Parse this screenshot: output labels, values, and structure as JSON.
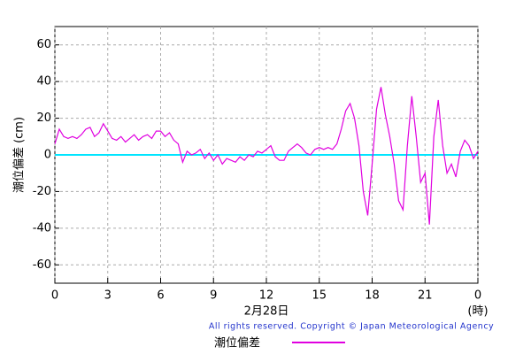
{
  "chart_data": {
    "type": "line",
    "ylabel": "潮位偏差 (cm)",
    "xlabel": "2月28日",
    "xunit": "(時)",
    "copyright": "All rights reserved. Copyright © Japan Meteorological Agency",
    "xlim": [
      0,
      24
    ],
    "xticks": [
      0,
      3,
      6,
      9,
      12,
      15,
      18,
      21,
      {
        "value": 24,
        "label": "0"
      }
    ],
    "ylim": [
      -70,
      70
    ],
    "yticks": [
      -60,
      -40,
      -20,
      0,
      20,
      40,
      60
    ],
    "grid": true,
    "reference_line": {
      "value": 0,
      "color": "#00e5ff"
    },
    "series": [
      {
        "name": "潮位偏差",
        "color": "#e000e0",
        "x": [
          0,
          0.25,
          0.5,
          0.75,
          1,
          1.25,
          1.5,
          1.75,
          2,
          2.25,
          2.5,
          2.75,
          3,
          3.25,
          3.5,
          3.75,
          4,
          4.25,
          4.5,
          4.75,
          5,
          5.25,
          5.5,
          5.75,
          6,
          6.25,
          6.5,
          6.75,
          7,
          7.25,
          7.5,
          7.75,
          8,
          8.25,
          8.5,
          8.75,
          9,
          9.25,
          9.5,
          9.75,
          10,
          10.25,
          10.5,
          10.75,
          11,
          11.25,
          11.5,
          11.75,
          12,
          12.25,
          12.5,
          12.75,
          13,
          13.25,
          13.5,
          13.75,
          14,
          14.25,
          14.5,
          14.75,
          15,
          15.25,
          15.5,
          15.75,
          16,
          16.25,
          16.5,
          16.75,
          17,
          17.25,
          17.5,
          17.75,
          18,
          18.25,
          18.5,
          18.75,
          19,
          19.25,
          19.5,
          19.75,
          20,
          20.25,
          20.5,
          20.75,
          21,
          21.25,
          21.5,
          21.75,
          22,
          22.25,
          22.5,
          22.75,
          23,
          23.25,
          23.5,
          23.75,
          24
        ],
        "values": [
          6,
          14,
          10,
          9,
          10,
          9,
          11,
          14,
          15,
          10,
          12,
          17,
          13,
          9,
          8,
          10,
          7,
          9,
          11,
          8,
          10,
          11,
          9,
          13,
          13,
          10,
          12,
          8,
          6,
          -4,
          2,
          0,
          1,
          3,
          -2,
          1,
          -3,
          0,
          -5,
          -2,
          -3,
          -4,
          -1,
          -3,
          0,
          -1,
          2,
          1,
          3,
          5,
          -1,
          -3,
          -3,
          2,
          4,
          6,
          4,
          1,
          0,
          3,
          4,
          3,
          4,
          3,
          6,
          14,
          24,
          28,
          20,
          5,
          -20,
          -33,
          -5,
          25,
          37,
          22,
          10,
          -5,
          -25,
          -30,
          5,
          32,
          10,
          -15,
          -10,
          -38,
          10,
          30,
          5,
          -10,
          -5,
          -12,
          2,
          8,
          5,
          -2,
          2
        ]
      }
    ]
  }
}
